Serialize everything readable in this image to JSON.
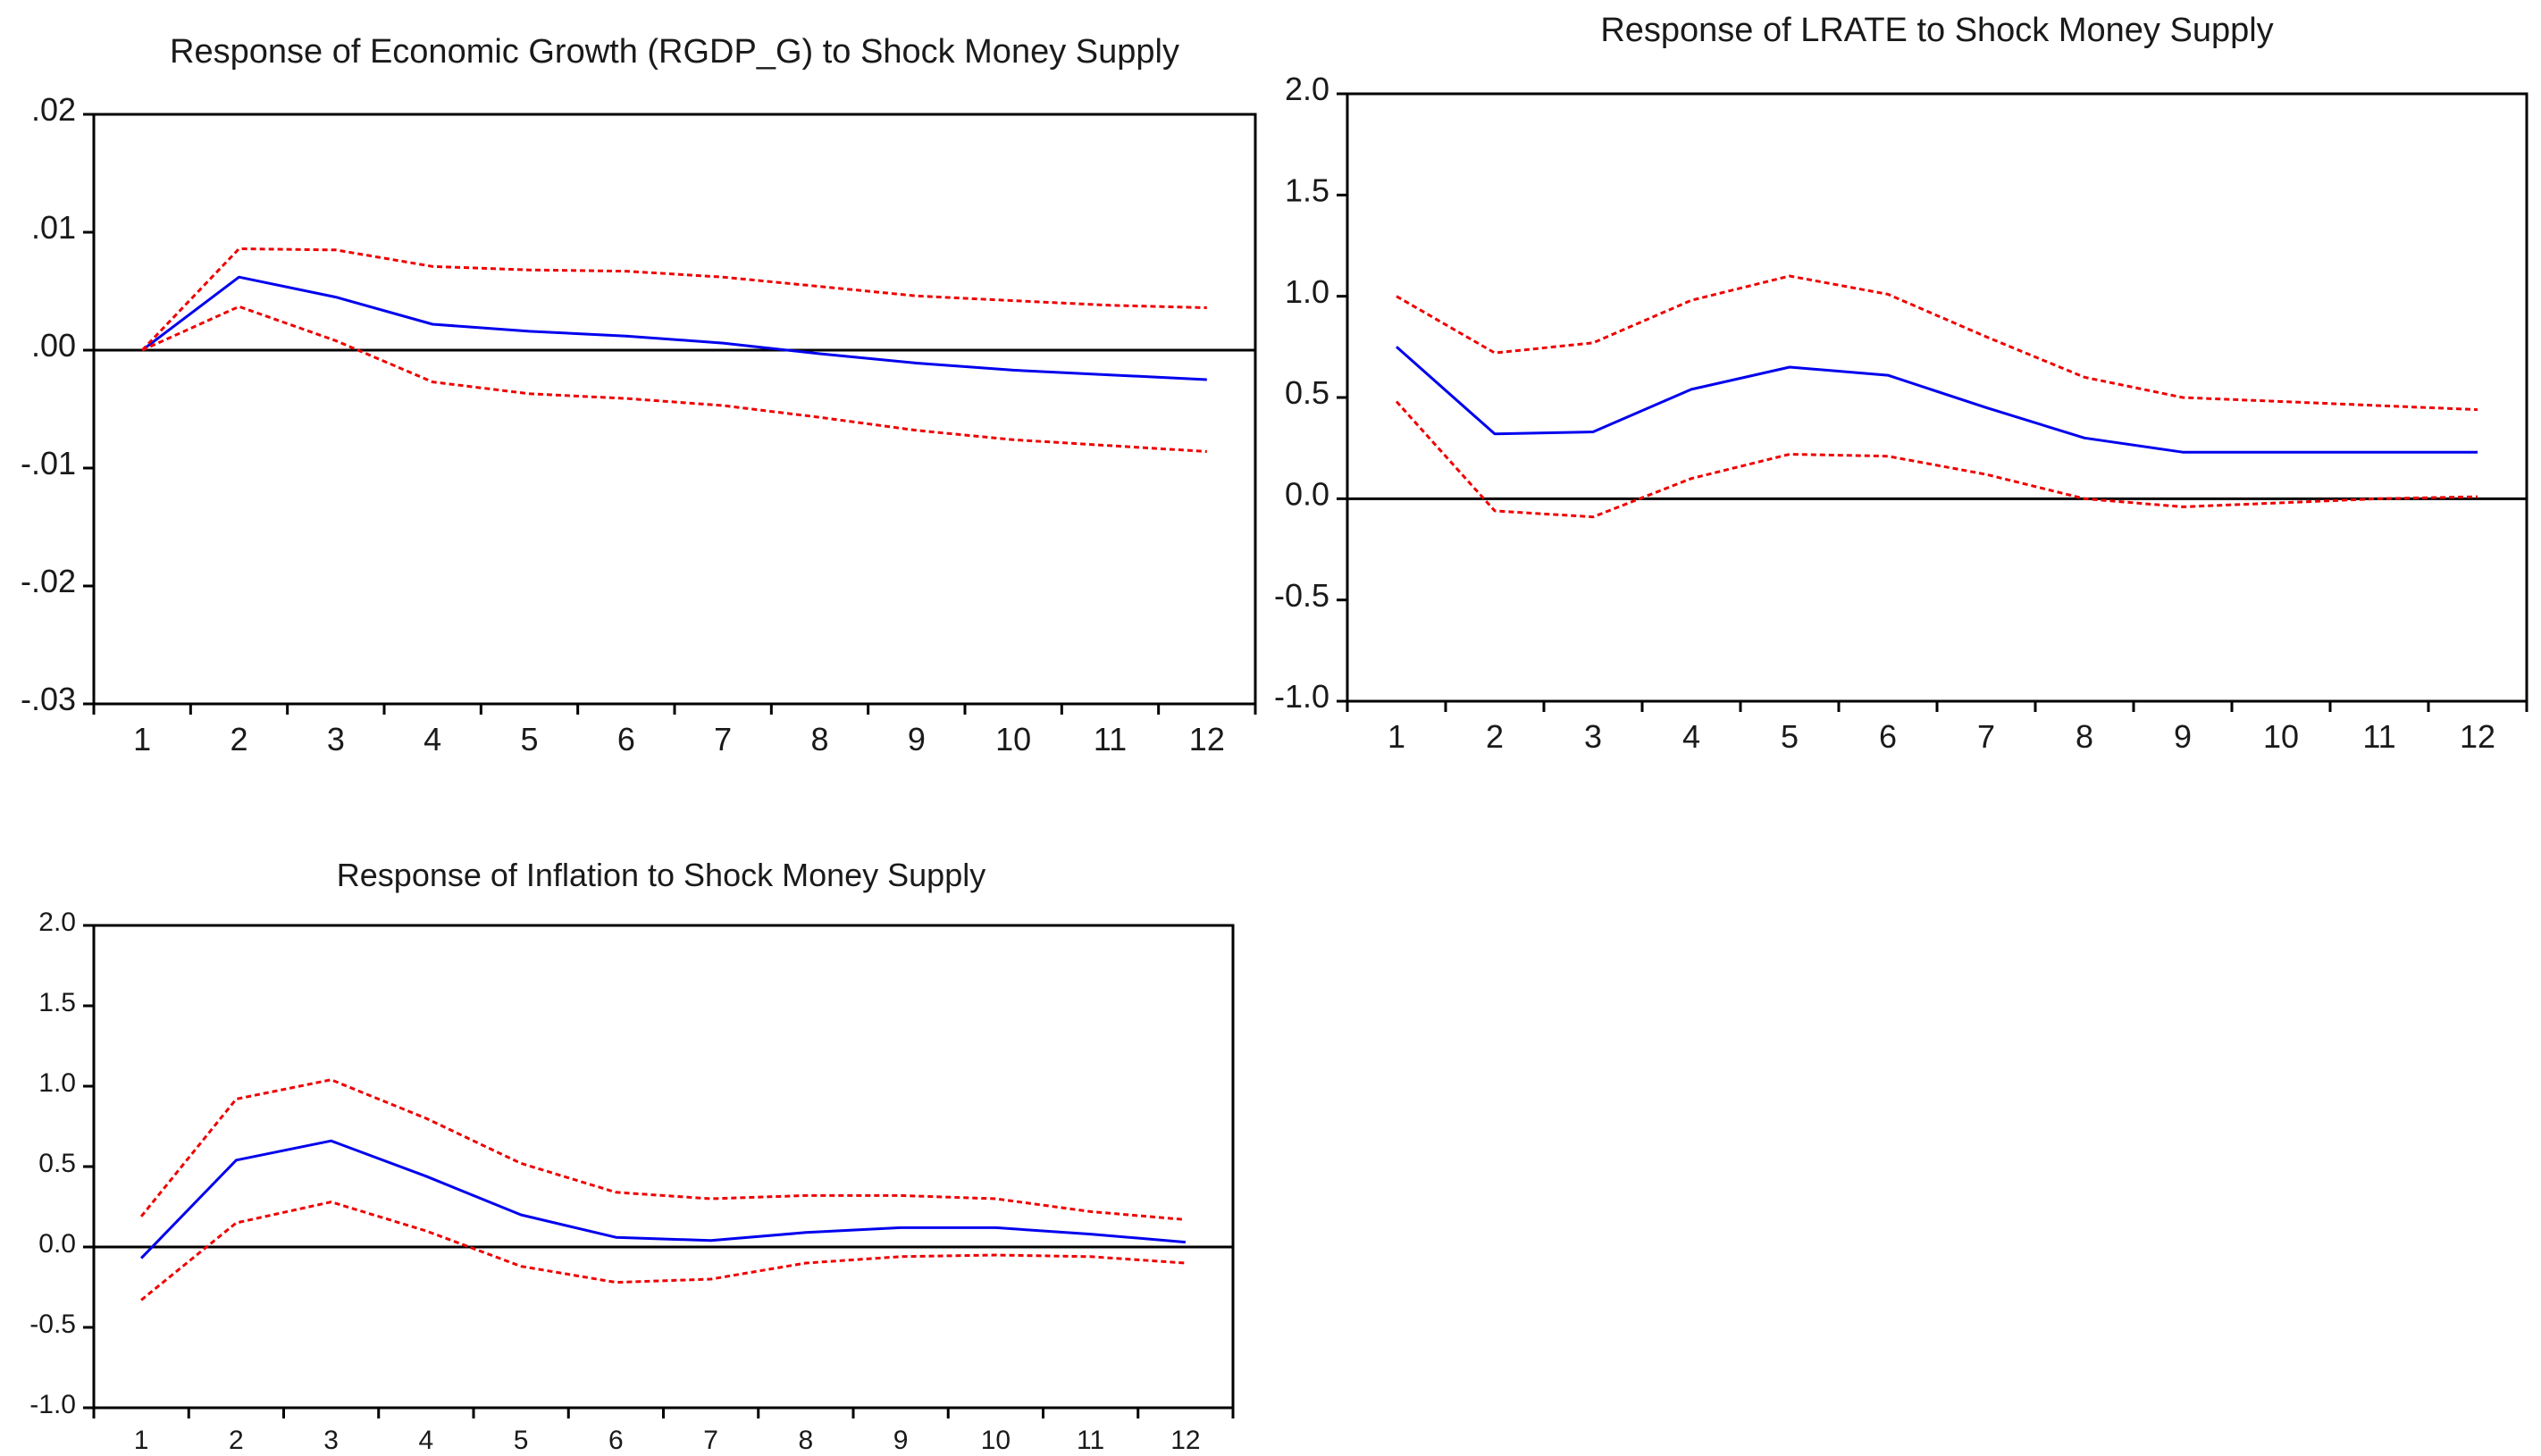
{
  "chart_data": [
    {
      "type": "line",
      "title": "Response of Economic Growth (RGDP_G) to Shock Money Supply",
      "x": [
        1,
        2,
        3,
        4,
        5,
        6,
        7,
        8,
        9,
        10,
        11,
        12
      ],
      "ylim": [
        -0.03,
        0.02
      ],
      "yticks": [
        0.02,
        0.01,
        0.0,
        -0.01,
        -0.02,
        -0.03
      ],
      "ytick_labels": [
        ".02",
        ".01",
        ".00",
        "-.01",
        "-.02",
        "-.03"
      ],
      "zero_line": true,
      "series": [
        {
          "name": "Response",
          "style": "solid",
          "color": "#0000ee",
          "values": [
            0.0,
            0.0062,
            0.0045,
            0.0022,
            0.0016,
            0.0012,
            0.0006,
            -0.0003,
            -0.0011,
            -0.0017,
            -0.0021,
            -0.0025
          ]
        },
        {
          "name": "Upper band",
          "style": "dashed",
          "color": "#ee0000",
          "values": [
            0.0,
            0.0086,
            0.0085,
            0.0071,
            0.0068,
            0.0067,
            0.0062,
            0.0054,
            0.0046,
            0.0042,
            0.0038,
            0.0036
          ]
        },
        {
          "name": "Lower band",
          "style": "dashed",
          "color": "#ee0000",
          "values": [
            0.0,
            0.0037,
            0.0008,
            -0.0027,
            -0.0037,
            -0.0041,
            -0.0047,
            -0.0057,
            -0.0068,
            -0.0076,
            -0.0081,
            -0.0086
          ]
        }
      ]
    },
    {
      "type": "line",
      "title": "Response of LRATE to Shock Money Supply",
      "x": [
        1,
        2,
        3,
        4,
        5,
        6,
        7,
        8,
        9,
        10,
        11,
        12
      ],
      "ylim": [
        -1.0,
        2.0
      ],
      "yticks": [
        2.0,
        1.5,
        1.0,
        0.5,
        0.0,
        -0.5,
        -1.0
      ],
      "ytick_labels": [
        "2.0",
        "1.5",
        "1.0",
        "0.5",
        "0.0",
        "-0.5",
        "-1.0"
      ],
      "zero_line": true,
      "series": [
        {
          "name": "Response",
          "style": "solid",
          "color": "#0000ee",
          "values": [
            0.75,
            0.32,
            0.33,
            0.54,
            0.65,
            0.61,
            0.45,
            0.3,
            0.23,
            0.23,
            0.23,
            0.23
          ]
        },
        {
          "name": "Upper band",
          "style": "dashed",
          "color": "#ee0000",
          "values": [
            1.0,
            0.72,
            0.77,
            0.98,
            1.1,
            1.01,
            0.8,
            0.6,
            0.5,
            0.48,
            0.46,
            0.44
          ]
        },
        {
          "name": "Lower band",
          "style": "dashed",
          "color": "#ee0000",
          "values": [
            0.48,
            -0.06,
            -0.09,
            0.1,
            0.22,
            0.21,
            0.12,
            0.0,
            -0.04,
            -0.02,
            0.0,
            0.01
          ]
        }
      ]
    },
    {
      "type": "line",
      "title": "Response of Inflation to Shock Money Supply",
      "x": [
        1,
        2,
        3,
        4,
        5,
        6,
        7,
        8,
        9,
        10,
        11,
        12
      ],
      "ylim": [
        -1.0,
        2.0
      ],
      "yticks": [
        2.0,
        1.5,
        1.0,
        0.5,
        0.0,
        -0.5,
        -1.0
      ],
      "ytick_labels": [
        "2.0",
        "1.5",
        "1.0",
        "0.5",
        "0.0",
        "-0.5",
        "-1.0"
      ],
      "zero_line": true,
      "series": [
        {
          "name": "Response",
          "style": "solid",
          "color": "#0000ee",
          "values": [
            -0.07,
            0.54,
            0.66,
            0.44,
            0.2,
            0.06,
            0.04,
            0.09,
            0.12,
            0.12,
            0.08,
            0.03
          ]
        },
        {
          "name": "Upper band",
          "style": "dashed",
          "color": "#ee0000",
          "values": [
            0.19,
            0.92,
            1.04,
            0.8,
            0.52,
            0.34,
            0.3,
            0.32,
            0.32,
            0.3,
            0.22,
            0.17
          ]
        },
        {
          "name": "Lower band",
          "style": "dashed",
          "color": "#ee0000",
          "values": [
            -0.33,
            0.15,
            0.28,
            0.1,
            -0.12,
            -0.22,
            -0.2,
            -0.1,
            -0.06,
            -0.05,
            -0.06,
            -0.1
          ]
        }
      ]
    }
  ]
}
